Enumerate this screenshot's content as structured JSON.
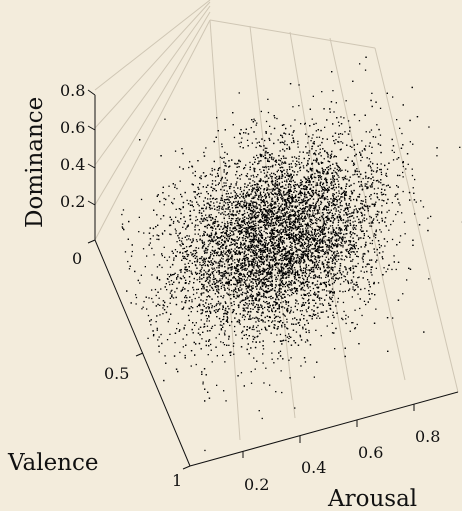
{
  "chart_data": {
    "type": "scatter",
    "title": "",
    "dimensions": 3,
    "axes": {
      "x": {
        "label": "Arousal",
        "ticks": [
          "0.2",
          "0.4",
          "0.6",
          "0.8"
        ],
        "range": [
          0,
          1
        ]
      },
      "y": {
        "label": "Valence",
        "ticks": [
          "0.5",
          "1"
        ],
        "range": [
          0,
          1
        ]
      },
      "z": {
        "label": "Dominance",
        "ticks": [
          "0",
          "0.2",
          "0.4",
          "0.6",
          "0.8"
        ],
        "range": [
          0,
          1
        ]
      }
    },
    "grid": true,
    "legend": "none",
    "point_color": "#000000",
    "point_count": 9000,
    "distribution": {
      "description": "dense cloud",
      "center": {
        "arousal": 0.38,
        "valence": 0.45,
        "dominance": 0.42
      },
      "spread": {
        "arousal": 0.14,
        "valence": 0.16,
        "dominance": 0.15
      },
      "arousal_dominance_correlation": 0.55
    }
  }
}
